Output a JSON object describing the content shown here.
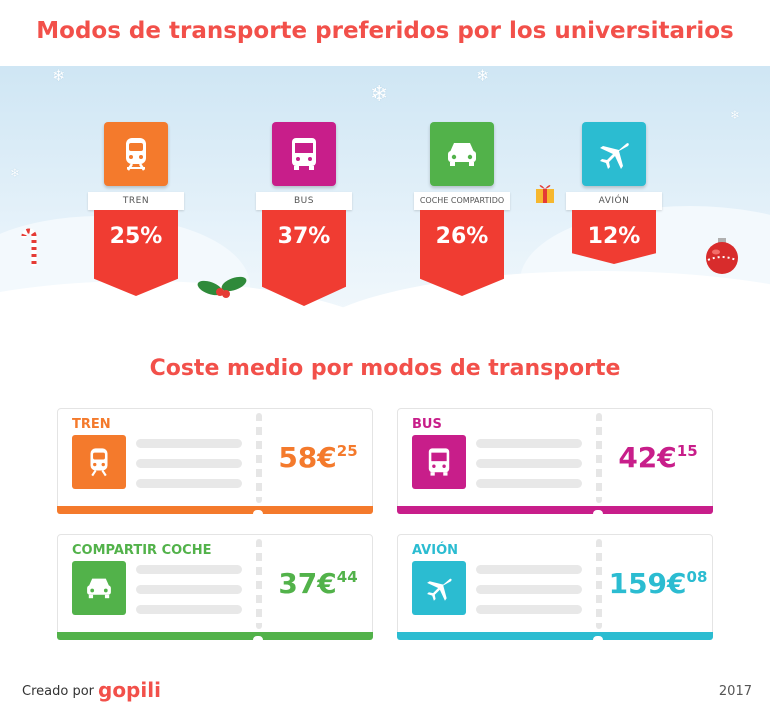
{
  "header": {
    "title": "Modos de transporte preferidos por los universitarios"
  },
  "modes": [
    {
      "label": "TREN",
      "percent": "25%",
      "color": "#f47a2c",
      "icon": "train-icon"
    },
    {
      "label": "BUS",
      "percent": "37%",
      "color": "#c81e8a",
      "icon": "bus-icon"
    },
    {
      "label": "COCHE COMPARTIDO",
      "percent": "26%",
      "color": "#52b24a",
      "icon": "car-icon"
    },
    {
      "label": "AVIÓN",
      "percent": "12%",
      "color": "#2bbcd1",
      "icon": "plane-icon"
    }
  ],
  "costs": {
    "title": "Coste medio por modos de transporte",
    "tickets": [
      {
        "name": "TREN",
        "euros": "58€",
        "cents": "25",
        "color": "#f47a2c",
        "icon": "train-icon"
      },
      {
        "name": "BUS",
        "euros": "42€",
        "cents": "15",
        "color": "#c81e8a",
        "icon": "bus-icon"
      },
      {
        "name": "COMPARTIR COCHE",
        "euros": "37€",
        "cents": "44",
        "color": "#52b24a",
        "icon": "car-icon"
      },
      {
        "name": "AVIÓN",
        "euros": "159€",
        "cents": "08",
        "color": "#2bbcd1",
        "icon": "plane-icon"
      }
    ]
  },
  "footer": {
    "credit": "Creado por",
    "logo": "gopili",
    "year": "2017"
  }
}
